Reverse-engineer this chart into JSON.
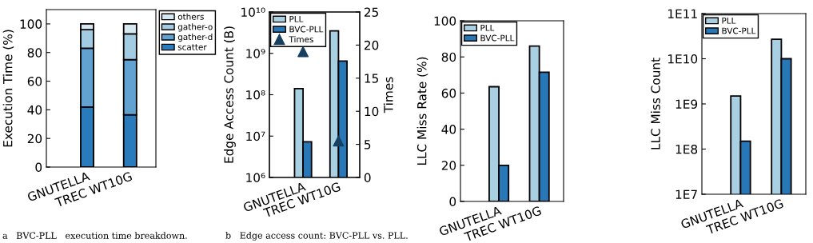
{
  "chart_data": [
    {
      "type": "bar",
      "stacked": true,
      "ylabel": "Execution Time (%)",
      "categories": [
        "GNUTELLA",
        "TREC WT10G"
      ],
      "ylim": [
        0,
        110
      ],
      "yticks": [
        0,
        20,
        40,
        60,
        80,
        100
      ],
      "legend": "right",
      "grid": false,
      "series": [
        {
          "name": "scatter",
          "color": "#2a7bbb",
          "values": [
            42,
            36.5
          ]
        },
        {
          "name": "gather-d",
          "color": "#62a2d0",
          "values": [
            41,
            38.5
          ]
        },
        {
          "name": "gather-o",
          "color": "#a3cbe2",
          "values": [
            13,
            18
          ]
        },
        {
          "name": "others",
          "color": "#d7e8f1",
          "values": [
            4,
            7
          ]
        }
      ],
      "annotations": [
        "a   BVC-PLL   execution time breakdown."
      ]
    },
    {
      "type": "bar",
      "log": "y",
      "ylabel": "Edge Access Count (B)",
      "y2label": "Times",
      "categories": [
        "GNUTELLA",
        "TREC WT10G"
      ],
      "ylim": [
        1000000,
        10000000000
      ],
      "yticks": [
        {
          "value": 1000000,
          "label": "10⁶"
        },
        {
          "value": 10000000,
          "label": "10⁷"
        },
        {
          "value": 100000000,
          "label": "10⁸"
        },
        {
          "value": 1000000000,
          "label": "10⁹"
        },
        {
          "value": 10000000000,
          "label": "10¹⁰"
        }
      ],
      "y2lim": [
        0,
        25
      ],
      "y2ticks": [
        0,
        5,
        10,
        15,
        20,
        25
      ],
      "legend": "top left",
      "grid": false,
      "series": [
        {
          "name": "PLL",
          "color": "#a9cfe3",
          "values": [
            140000000,
            3500000000
          ]
        },
        {
          "name": "BVC-PLL",
          "color": "#2878b8",
          "values": [
            7300000,
            650000000
          ]
        },
        {
          "name": "Times",
          "type": "scatter",
          "axis": "y2",
          "marker": "triangle",
          "color": "#173f5f",
          "x": [
            "GNUTELLA",
            "TREC WT10G"
          ],
          "values": [
            19,
            5.5
          ]
        }
      ],
      "annotations": [
        "b   Edge access count: BVC-PLL vs. PLL."
      ]
    },
    {
      "type": "bar",
      "ylabel": "LLC Miss Rate (%)",
      "categories": [
        "GNUTELLA",
        "TREC WT10G"
      ],
      "ylim": [
        0,
        100
      ],
      "yticks": [
        0,
        20,
        40,
        60,
        80,
        100
      ],
      "legend": "top left",
      "grid": false,
      "series": [
        {
          "name": "PLL",
          "color": "#a9cfe3",
          "values": [
            63.5,
            86
          ]
        },
        {
          "name": "BVC-PLL",
          "color": "#2878b8",
          "values": [
            20,
            71.5
          ]
        }
      ]
    },
    {
      "type": "bar",
      "log": "y",
      "ylabel": "LLC Miss Count",
      "categories": [
        "GNUTELLA",
        "TREC WT10G"
      ],
      "ylim": [
        10000000,
        100000000000
      ],
      "yticks": [
        {
          "value": 10000000,
          "label": "1E7"
        },
        {
          "value": 100000000,
          "label": "1E8"
        },
        {
          "value": 1000000000,
          "label": "1E9"
        },
        {
          "value": 10000000000,
          "label": "1E10"
        },
        {
          "value": 100000000000,
          "label": "1E11"
        }
      ],
      "legend": "top left",
      "grid": false,
      "series": [
        {
          "name": "PLL",
          "color": "#a9cfe3",
          "values": [
            1500000000,
            27000000000
          ]
        },
        {
          "name": "BVC-PLL",
          "color": "#2878b8",
          "values": [
            150000000,
            10000000000
          ]
        }
      ]
    }
  ]
}
